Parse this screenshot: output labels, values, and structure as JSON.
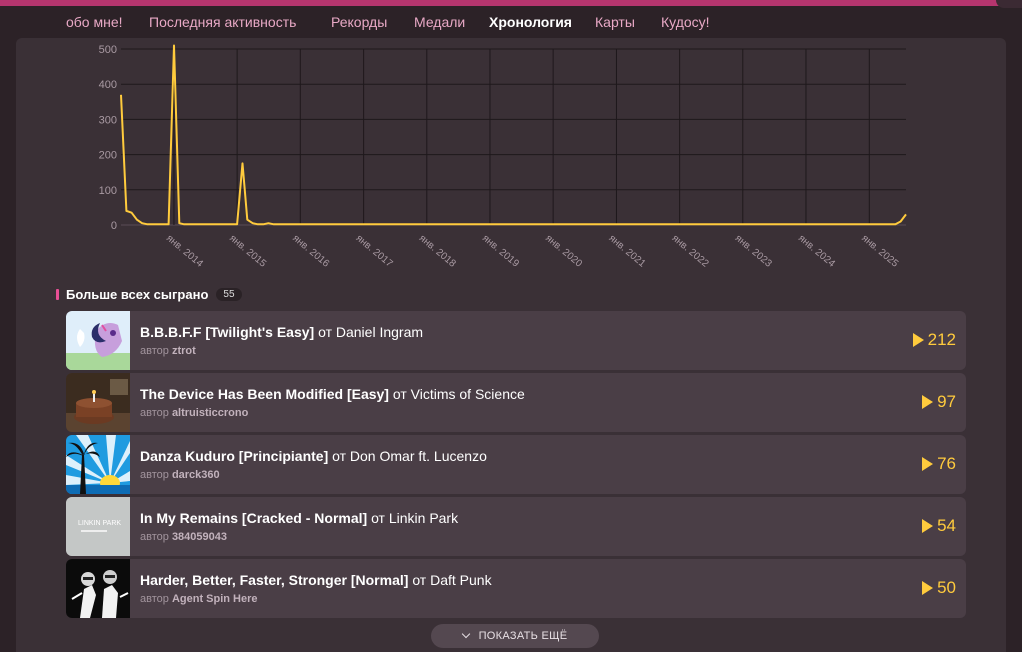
{
  "nav": {
    "items": [
      {
        "label": "обо мне!",
        "active": false
      },
      {
        "label": "Последняя активность",
        "active": false
      },
      {
        "label": "Рекорды",
        "active": false
      },
      {
        "label": "Медали",
        "active": false
      },
      {
        "label": "Хронология",
        "active": true
      },
      {
        "label": "Карты",
        "active": false
      },
      {
        "label": "Кудосу!",
        "active": false
      }
    ]
  },
  "chart_data": {
    "type": "line",
    "title": "",
    "xlabel": "",
    "ylabel": "",
    "ylim": [
      0,
      500
    ],
    "yticks": [
      0,
      100,
      200,
      300,
      400,
      500
    ],
    "xticks": [
      "янв. 2014",
      "янв. 2015",
      "янв. 2016",
      "янв. 2017",
      "янв. 2018",
      "янв. 2019",
      "янв. 2020",
      "янв. 2021",
      "янв. 2022",
      "янв. 2023",
      "янв. 2024",
      "янв. 2025"
    ],
    "grid": true,
    "color": "#ffcb3d",
    "series": [
      {
        "x": [
          "2013-03",
          "2013-04",
          "2013-05",
          "2013-06",
          "2013-07",
          "2013-08",
          "2013-09",
          "2013-10",
          "2013-11",
          "2013-12",
          "2014-01",
          "2014-02",
          "2014-03",
          "2014-06",
          "2014-09",
          "2014-12",
          "2015-01",
          "2015-02",
          "2015-03",
          "2015-04",
          "2015-05",
          "2015-06",
          "2015-07",
          "2015-08",
          "2015-12",
          "2018-01",
          "2021-01",
          "2024-01",
          "2025-06",
          "2025-07",
          "2025-08"
        ],
        "y": [
          370,
          40,
          35,
          15,
          5,
          2,
          2,
          2,
          2,
          2,
          510,
          5,
          2,
          2,
          2,
          2,
          2,
          175,
          15,
          5,
          2,
          2,
          5,
          2,
          2,
          2,
          2,
          2,
          2,
          10,
          30
        ]
      }
    ]
  },
  "section": {
    "title": "Больше всех сыграно",
    "count": "55"
  },
  "tracks": [
    {
      "title": "B.B.B.F.F [Twilight's Easy]",
      "by": "от",
      "artist": "Daniel Ingram",
      "author_label": "автор",
      "author": "ztrot",
      "plays": "212"
    },
    {
      "title": "The Device Has Been Modified [Easy]",
      "by": "от",
      "artist": "Victims of Science",
      "author_label": "автор",
      "author": "altruisticcrono",
      "plays": "97"
    },
    {
      "title": "Danza Kuduro [Principiante]",
      "by": "от",
      "artist": "Don Omar ft. Lucenzo",
      "author_label": "автор",
      "author": "darck360",
      "plays": "76"
    },
    {
      "title": "In My Remains [Cracked - Normal]",
      "by": "от",
      "artist": "Linkin Park",
      "author_label": "автор",
      "author": "384059043",
      "plays": "54",
      "thumb_text": "LINKIN PARK"
    },
    {
      "title": "Harder, Better, Faster, Stronger [Normal]",
      "by": "от",
      "artist": "Daft Punk",
      "author_label": "автор",
      "author": "Agent Spin Here",
      "plays": "50"
    }
  ],
  "show_more_label": "ПОКАЗАТЬ ЕЩЁ"
}
